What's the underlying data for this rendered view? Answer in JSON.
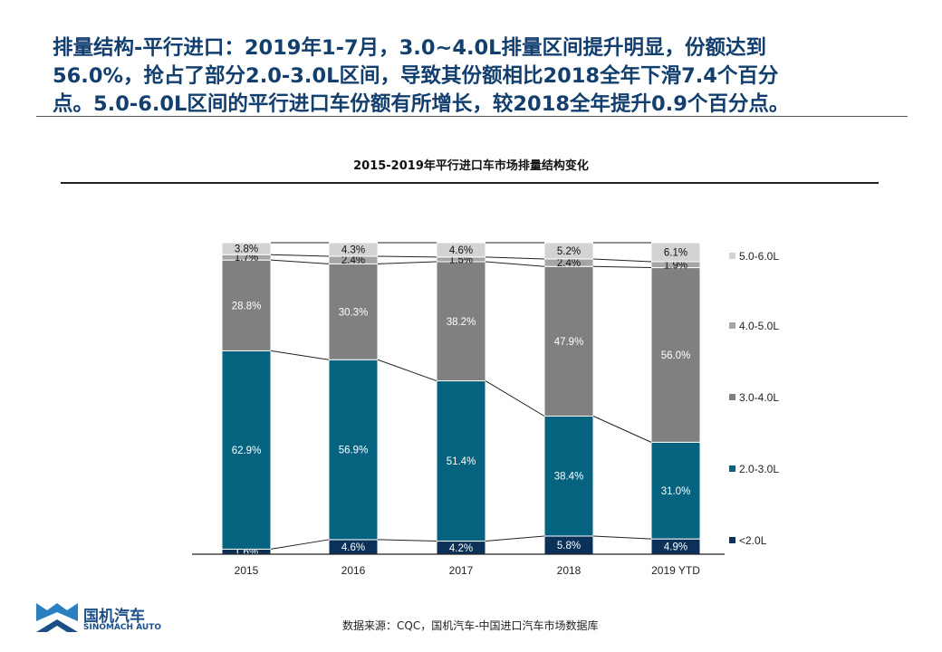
{
  "headline": [
    "排量结构-平行进口：2019年1-7月，3.0~4.0L排量区间提升明显，份额达到",
    "56.0%，抢占了部分2.0-3.0L区间，导致其份额相比2018全年下滑7.4个百分",
    "点。5.0-6.0L区间的平行进口车份额有所增长，较2018全年提升0.9个百分点。"
  ],
  "source": "数据来源：CQC，国机汽车-中国进口汽车市场数据库",
  "logo": {
    "cn": "国机汽车",
    "en": "SINOMACH AUTO"
  },
  "chart_data": {
    "type": "bar",
    "stacked": true,
    "percent": true,
    "title": "2015-2019年平行进口车市场排量结构变化",
    "categories": [
      "2015",
      "2016",
      "2017",
      "2018",
      "2019 YTD"
    ],
    "series": [
      {
        "name": "<2.0L",
        "color": "#0c3158",
        "values": [
          1.6,
          4.6,
          4.2,
          5.8,
          4.9
        ]
      },
      {
        "name": "2.0-3.0L",
        "color": "#056380",
        "values": [
          62.9,
          56.9,
          51.4,
          38.4,
          31.0
        ]
      },
      {
        "name": "3.0-4.0L",
        "color": "#808080",
        "values": [
          28.8,
          30.3,
          38.2,
          47.9,
          56.0
        ]
      },
      {
        "name": "4.0-5.0L",
        "color": "#a5a5a5",
        "values": [
          1.7,
          2.4,
          1.5,
          2.4,
          1.9
        ]
      },
      {
        "name": "5.0-6.0L",
        "color": "#d2d3d5",
        "values": [
          3.8,
          4.3,
          4.6,
          5.2,
          6.1
        ]
      }
    ],
    "legend": "right",
    "grid": false
  }
}
